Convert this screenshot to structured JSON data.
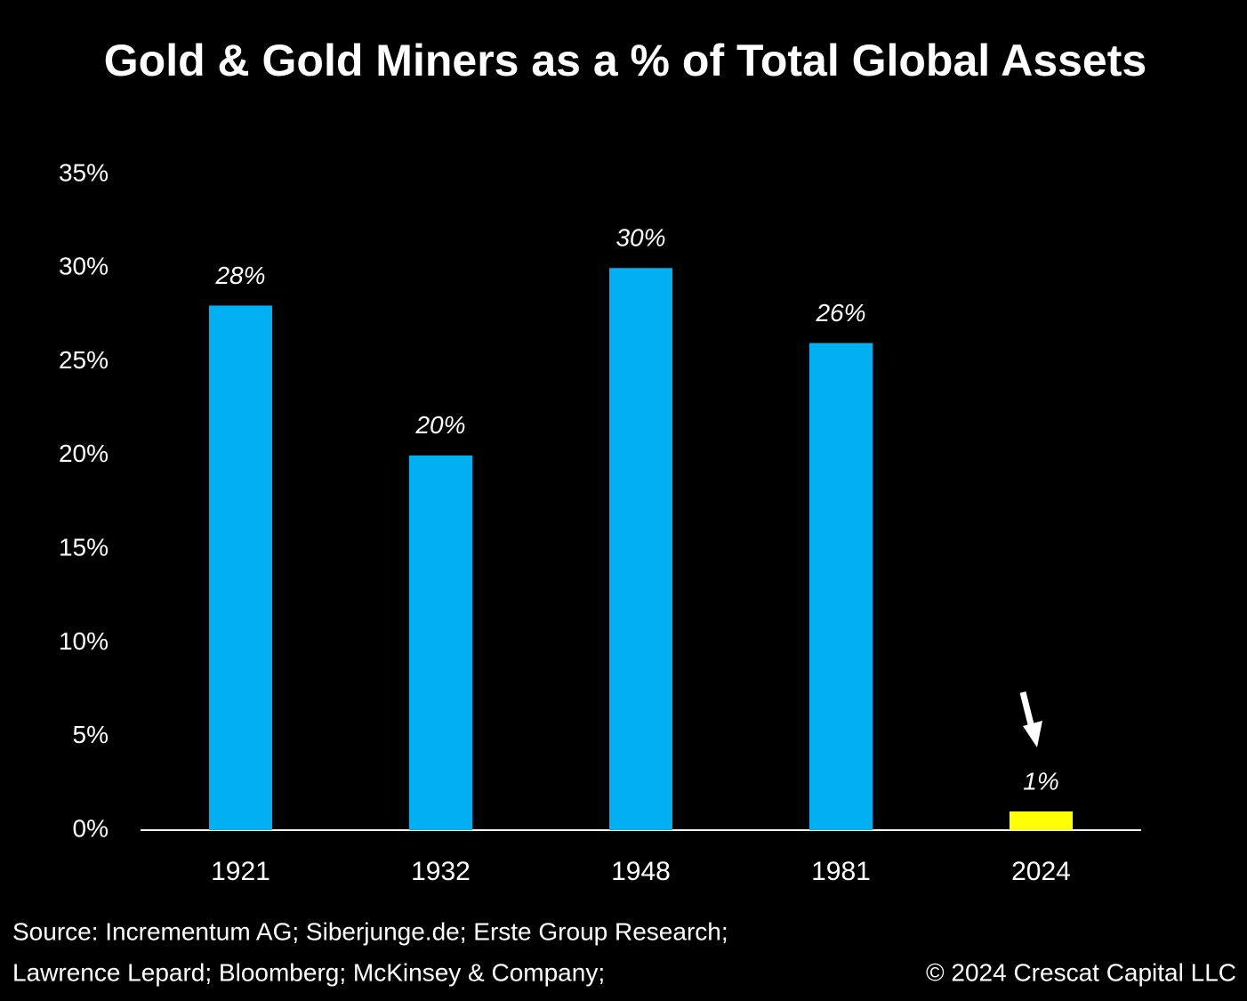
{
  "chart_data": {
    "type": "bar",
    "title": "Gold & Gold Miners as a % of Total Global Assets",
    "categories": [
      "1921",
      "1932",
      "1948",
      "1981",
      "2024"
    ],
    "values": [
      28,
      20,
      30,
      26,
      1
    ],
    "value_labels": [
      "28%",
      "20%",
      "30%",
      "26%",
      "1%"
    ],
    "colors": [
      "#00b0f0",
      "#00b0f0",
      "#00b0f0",
      "#00b0f0",
      "#ffff00"
    ],
    "ylim": [
      0,
      35
    ],
    "yticks": [
      {
        "value": 0,
        "label": "0%"
      },
      {
        "value": 5,
        "label": "5%"
      },
      {
        "value": 10,
        "label": "10%"
      },
      {
        "value": 15,
        "label": "15%"
      },
      {
        "value": 20,
        "label": "20%"
      },
      {
        "value": 25,
        "label": "25%"
      },
      {
        "value": 30,
        "label": "30%"
      },
      {
        "value": 35,
        "label": "35%"
      }
    ],
    "grid": false,
    "source": [
      "Source: Incrementum AG; Siberjunge.de; Erste Group Research;",
      "Lawrence Lepard; Bloomberg; McKinsey & Company;"
    ],
    "copyright": "© 2024 Crescat Capital LLC"
  }
}
